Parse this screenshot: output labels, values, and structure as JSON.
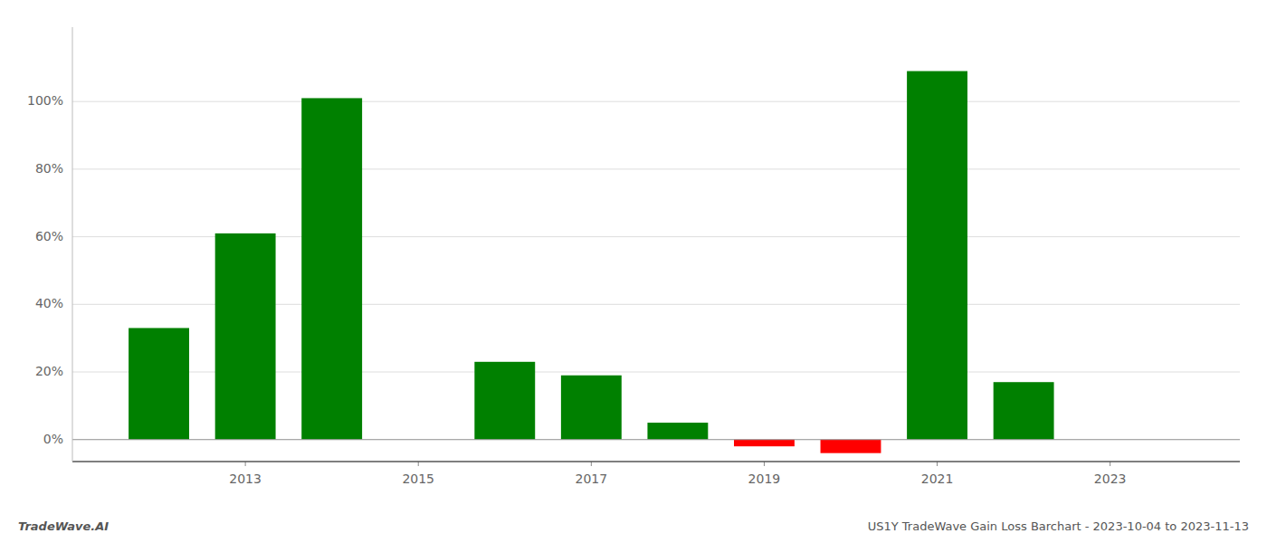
{
  "chart_data": {
    "type": "bar",
    "x": [
      2012,
      2013,
      2014,
      2016,
      2017,
      2018,
      2019,
      2020,
      2021,
      2022
    ],
    "values": [
      0.33,
      0.61,
      1.01,
      0.23,
      0.19,
      0.05,
      -0.02,
      -0.04,
      1.09,
      0.17
    ],
    "colors": [
      "#008000",
      "#008000",
      "#008000",
      "#008000",
      "#008000",
      "#008000",
      "#ff0000",
      "#ff0000",
      "#008000",
      "#008000"
    ],
    "xlim": [
      2011.0,
      2024.5
    ],
    "xticks": [
      2013,
      2015,
      2017,
      2019,
      2021,
      2023
    ],
    "ylim": [
      -0.065,
      1.22
    ],
    "yticks": [
      {
        "value": 0.0,
        "label": "0%"
      },
      {
        "value": 0.2,
        "label": "20%"
      },
      {
        "value": 0.4,
        "label": "40%"
      },
      {
        "value": 0.6,
        "label": "60%"
      },
      {
        "value": 0.8,
        "label": "80%"
      },
      {
        "value": 1.0,
        "label": "100%"
      }
    ],
    "grid": true,
    "annotations": [
      "TradeWave.AI",
      "US1Y TradeWave Gain Loss Barchart - 2023-10-04 to 2023-11-13"
    ]
  }
}
